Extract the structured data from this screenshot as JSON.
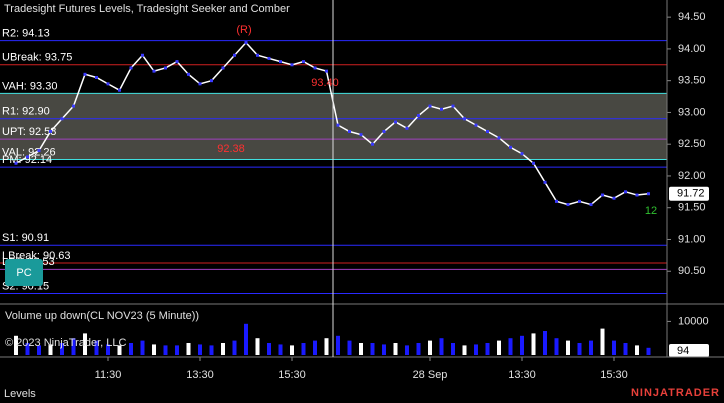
{
  "chart_data": [
    {
      "type": "line",
      "title": "Tradesight Futures Levels, Tradesight Seeker and Comber",
      "categories": [
        null,
        null,
        null,
        null,
        null,
        null,
        null,
        null,
        "11:30",
        null,
        null,
        null,
        null,
        null,
        null,
        null,
        "13:30",
        null,
        null,
        null,
        null,
        null,
        null,
        null,
        "15:30",
        null,
        null,
        null,
        null,
        null,
        null,
        null,
        null,
        null,
        null,
        null,
        "28 Sep",
        null,
        null,
        null,
        null,
        null,
        null,
        null,
        "13:30",
        null,
        null,
        null,
        null,
        null,
        null,
        null,
        "15:30",
        null,
        null,
        null
      ],
      "values": [
        92.2,
        92.3,
        92.4,
        92.7,
        92.9,
        93.1,
        93.6,
        93.55,
        93.45,
        93.35,
        93.7,
        93.9,
        93.65,
        93.7,
        93.8,
        93.6,
        93.45,
        93.5,
        93.7,
        93.9,
        94.1,
        93.9,
        93.85,
        93.8,
        93.75,
        93.8,
        93.7,
        93.65,
        92.8,
        92.7,
        92.65,
        92.5,
        92.7,
        92.85,
        92.75,
        92.95,
        93.1,
        93.05,
        93.1,
        92.9,
        92.8,
        92.7,
        92.6,
        92.45,
        92.35,
        92.2,
        91.9,
        91.6,
        91.55,
        91.6,
        91.55,
        91.7,
        91.65,
        91.75,
        91.7,
        91.72
      ],
      "color": "#ffffff",
      "ylim": [
        90.0,
        94.77
      ],
      "yticks": [
        {
          "value": 94.5,
          "label": "94.50"
        },
        {
          "value": 94.0,
          "label": "94.00"
        },
        {
          "value": 93.5,
          "label": "93.50"
        },
        {
          "value": 93.0,
          "label": "93.00"
        },
        {
          "value": 92.5,
          "label": "92.50"
        },
        {
          "value": 92.0,
          "label": "92.00"
        },
        {
          "value": 91.5,
          "label": "91.50"
        },
        {
          "value": 91.0,
          "label": "91.00"
        },
        {
          "value": 90.5,
          "label": "90.50"
        }
      ],
      "value_area": {
        "top": 93.3,
        "bottom": 92.26,
        "color": "#5a5a52"
      },
      "levels": [
        {
          "label": "R2: 94.13",
          "value": 94.13,
          "color": "#2a2aff"
        },
        {
          "label": "UBreak: 93.75",
          "value": 93.75,
          "color": "#d02020"
        },
        {
          "label": "VAH: 93.30",
          "value": 93.3,
          "color": "#40e0e0"
        },
        {
          "label": "R1: 92.90",
          "value": 92.9,
          "color": "#2a2aff"
        },
        {
          "label": "UPT: 92.58",
          "value": 92.58,
          "color": "#a040c0"
        },
        {
          "label": "VAL: 92.26",
          "value": 92.26,
          "color": "#40e0e0"
        },
        {
          "label": "PM: 92.14",
          "value": 92.14,
          "color": "#2a2aff"
        },
        {
          "label": "S1: 90.91",
          "value": 90.91,
          "color": "#2a2aff"
        },
        {
          "label": "LBreak: 90.63",
          "value": 90.63,
          "color": "#d02020"
        },
        {
          "label": "LPT: 90.53",
          "value": 90.53,
          "color": "#a040c0"
        },
        {
          "label": "S2: 90.15",
          "value": 90.15,
          "color": "#2a2aff"
        }
      ],
      "annotations": [
        {
          "text": "(R)",
          "color": "#ff3030"
        },
        {
          "text": "93.40",
          "color": "#ff3030"
        },
        {
          "text": "92.38",
          "color": "#ff3030"
        },
        {
          "text": "12",
          "color": "#30c030"
        }
      ]
    },
    {
      "type": "bar",
      "title": "Volume up down(CL NOV23 (5 Minute))",
      "values": [
        7000,
        5500,
        5000,
        5200,
        5500,
        6500,
        7500,
        6000,
        5200,
        5000,
        5500,
        6000,
        5200,
        5000,
        5000,
        5500,
        5200,
        5000,
        5500,
        6000,
        9500,
        6500,
        5500,
        5200,
        5000,
        5500,
        6000,
        6500,
        7000,
        6000,
        5500,
        5500,
        5200,
        5500,
        5000,
        5500,
        6000,
        6500,
        5500,
        5000,
        5200,
        5500,
        6000,
        6500,
        7000,
        7500,
        8000,
        6500,
        6000,
        5500,
        6000,
        8500,
        6000,
        5500,
        5000,
        4500
      ],
      "color": "#1a1aff",
      "ylim": [
        3000,
        13000
      ],
      "yticks": [
        10000
      ],
      "last_value": 94
    }
  ],
  "pc_button": "PC",
  "copyright": "© 2023 NinjaTrader, LLC",
  "footer_tab": "Levels",
  "brand": "NINJATRADER"
}
